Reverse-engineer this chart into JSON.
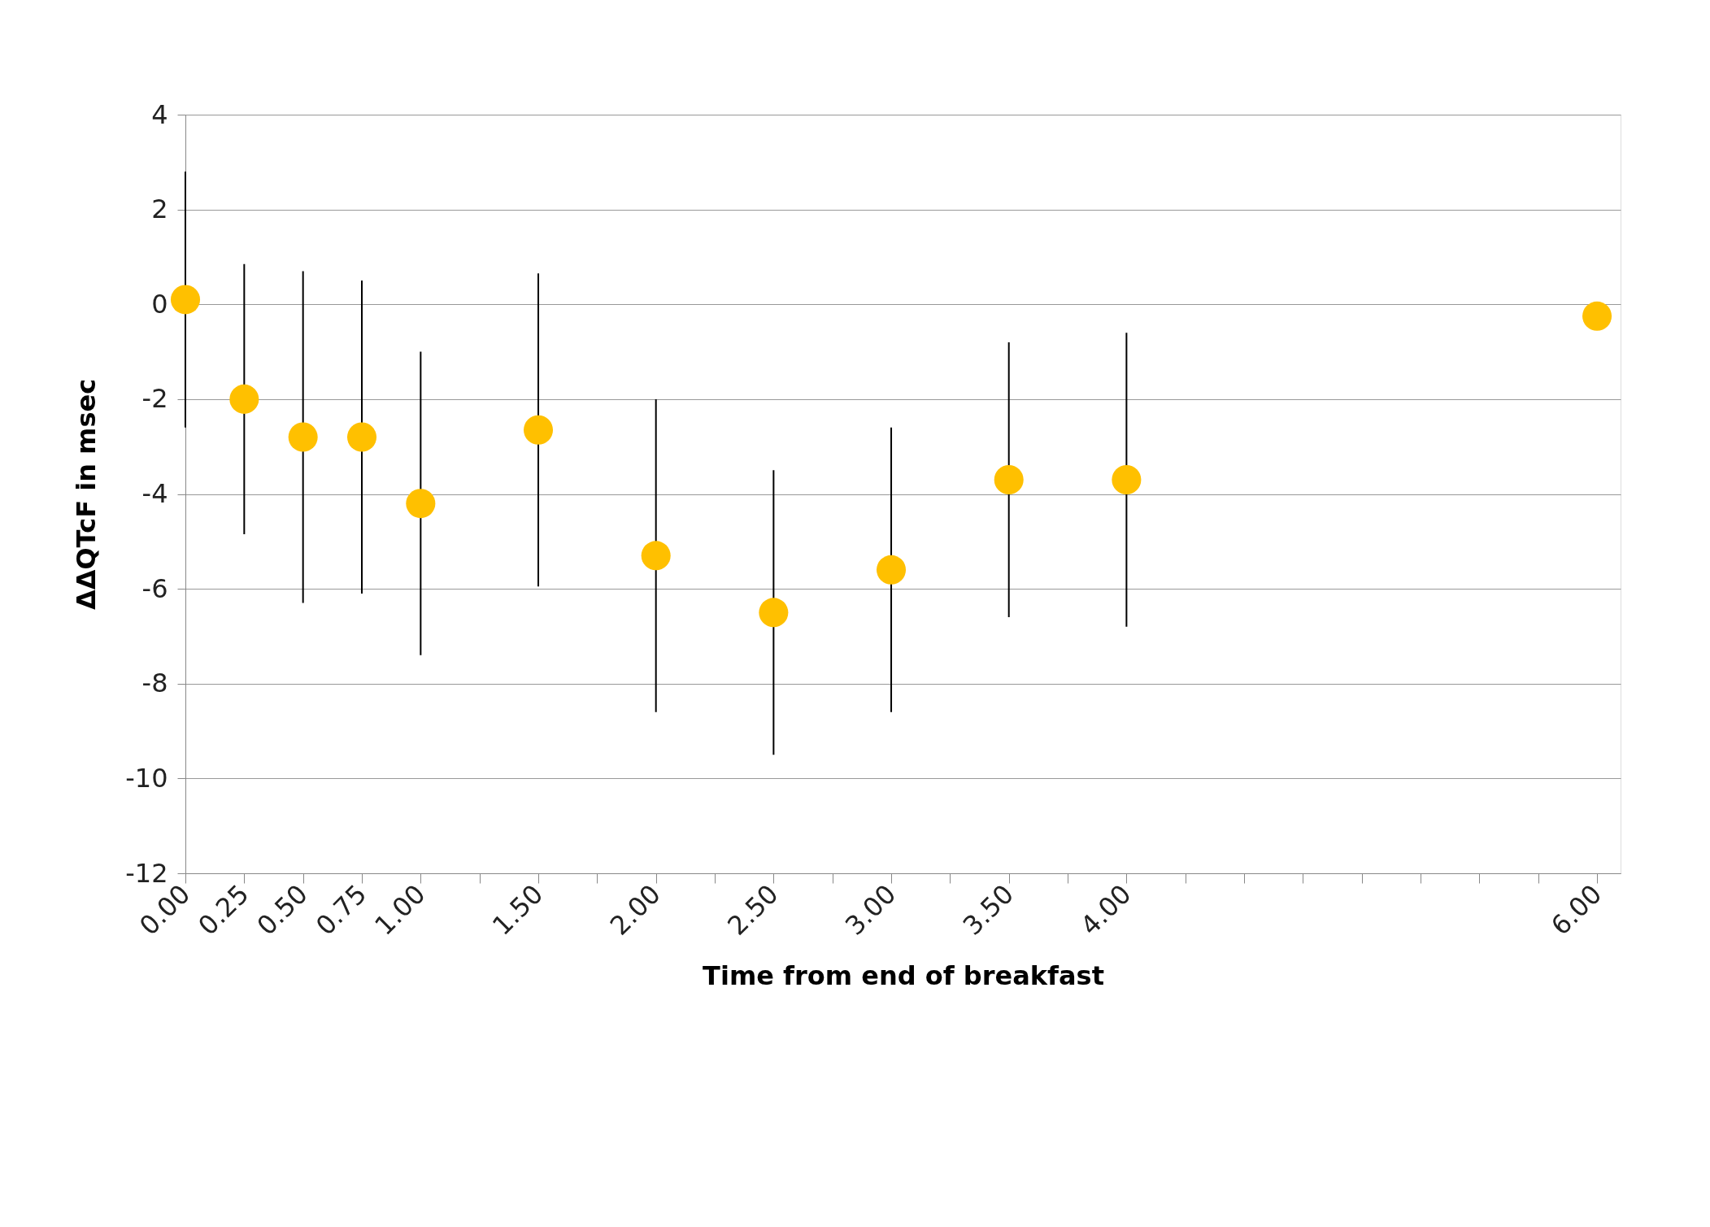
{
  "chart_data": {
    "type": "scatter",
    "xlabel": "Time from end of breakfast",
    "ylabel": "ΔΔQTcF in msec",
    "x": [
      0,
      0.25,
      0.5,
      0.75,
      1.0,
      1.5,
      2.0,
      2.5,
      3.0,
      3.5,
      4.0,
      6.0
    ],
    "series": [
      {
        "color": "#ffc000",
        "values": [
          0.1,
          -2.0,
          -2.8,
          -2.8,
          -4.2,
          -2.65,
          -5.3,
          -6.5,
          -5.6,
          -3.7,
          -3.7,
          -0.25
        ],
        "errors": [
          2.7,
          2.85,
          3.5,
          3.3,
          3.2,
          3.3,
          3.3,
          3.0,
          3.0,
          2.9,
          3.1,
          null
        ]
      }
    ],
    "xlim": [
      0,
      6.1
    ],
    "xticks": [
      {
        "value": 0,
        "label": "0.00"
      },
      {
        "value": 0.25,
        "label": "0.25"
      },
      {
        "value": 0.5,
        "label": "0.50"
      },
      {
        "value": 0.75,
        "label": "0.75"
      },
      {
        "value": 1.0,
        "label": "1.00"
      },
      {
        "value": 1.25,
        "label": null
      },
      {
        "value": 1.5,
        "label": "1.50"
      },
      {
        "value": 1.75,
        "label": null
      },
      {
        "value": 2.0,
        "label": "2.00"
      },
      {
        "value": 2.25,
        "label": null
      },
      {
        "value": 2.5,
        "label": "2.50"
      },
      {
        "value": 2.75,
        "label": null
      },
      {
        "value": 3.0,
        "label": "3.00"
      },
      {
        "value": 3.25,
        "label": null
      },
      {
        "value": 3.5,
        "label": "3.50"
      },
      {
        "value": 3.75,
        "label": null
      },
      {
        "value": 4.0,
        "label": "4.00"
      },
      {
        "value": 4.25,
        "label": null
      },
      {
        "value": 4.5,
        "label": null
      },
      {
        "value": 4.75,
        "label": null
      },
      {
        "value": 5.0,
        "label": null
      },
      {
        "value": 5.25,
        "label": null
      },
      {
        "value": 5.5,
        "label": null
      },
      {
        "value": 5.75,
        "label": null
      },
      {
        "value": 6.0,
        "label": "6.00"
      }
    ],
    "ylim": [
      -12,
      4
    ],
    "yticks": [
      -12,
      -10,
      -8,
      -6,
      -4,
      -2,
      0,
      2,
      4
    ],
    "grid": "y",
    "marker": "circle",
    "legend": false
  }
}
